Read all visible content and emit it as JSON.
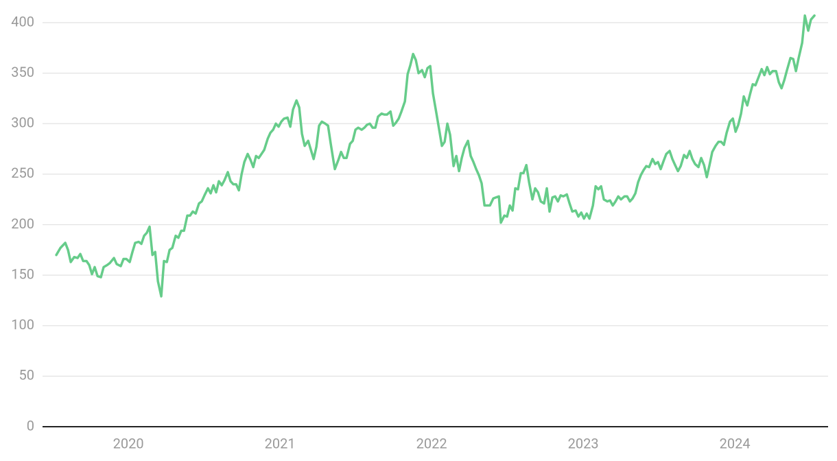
{
  "chart_data": {
    "type": "line",
    "color": "#66cc8a",
    "grid": true,
    "xlim": [
      2019.434,
      2024.615
    ],
    "xticks": [
      2020,
      2021,
      2022,
      2023,
      2024
    ],
    "ylim": [
      0,
      400
    ],
    "yticks": [
      0,
      50,
      100,
      150,
      200,
      250,
      300,
      350,
      400
    ],
    "x": [
      2019.525,
      2019.552,
      2019.584,
      2019.602,
      2019.62,
      2019.643,
      2019.665,
      2019.683,
      2019.702,
      2019.724,
      2019.742,
      2019.76,
      2019.778,
      2019.797,
      2019.819,
      2019.837,
      2019.86,
      2019.878,
      2019.905,
      2019.923,
      2019.95,
      2019.968,
      2019.987,
      2020.009,
      2020.027,
      2020.045,
      2020.068,
      2020.086,
      2020.104,
      2020.122,
      2020.14,
      2020.159,
      2020.177,
      2020.195,
      2020.217,
      2020.235,
      2020.254,
      2020.272,
      2020.29,
      2020.312,
      2020.33,
      2020.349,
      2020.367,
      2020.389,
      2020.407,
      2020.425,
      2020.444,
      2020.466,
      2020.484,
      2020.502,
      2020.525,
      2020.543,
      2020.561,
      2020.579,
      2020.597,
      2020.616,
      2020.634,
      2020.656,
      2020.674,
      2020.692,
      2020.711,
      2020.729,
      2020.747,
      2020.765,
      2020.787,
      2020.806,
      2020.824,
      2020.842,
      2020.86,
      2020.878,
      2020.896,
      2020.919,
      2020.937,
      2020.955,
      2020.973,
      2020.991,
      2021.009,
      2021.027,
      2021.05,
      2021.068,
      2021.086,
      2021.109,
      2021.127,
      2021.145,
      2021.163,
      2021.186,
      2021.204,
      2021.222,
      2021.24,
      2021.258,
      2021.276,
      2021.299,
      2021.317,
      2021.335,
      2021.353,
      2021.362,
      2021.385,
      2021.403,
      2021.421,
      2021.439,
      2021.462,
      2021.48,
      2021.498,
      2021.516,
      2021.539,
      2021.557,
      2021.575,
      2021.593,
      2021.611,
      2021.629,
      2021.647,
      2021.67,
      2021.688,
      2021.706,
      2021.729,
      2021.747,
      2021.765,
      2021.783,
      2021.801,
      2021.824,
      2021.842,
      2021.86,
      2021.878,
      2021.896,
      2021.914,
      2021.937,
      2021.955,
      2021.973,
      2021.991,
      2022.009,
      2022.032,
      2022.05,
      2022.068,
      2022.086,
      2022.104,
      2022.122,
      2022.145,
      2022.163,
      2022.181,
      2022.199,
      2022.217,
      2022.24,
      2022.258,
      2022.276,
      2022.294,
      2022.312,
      2022.33,
      2022.349,
      2022.367,
      2022.385,
      2022.407,
      2022.425,
      2022.444,
      2022.457,
      2022.48,
      2022.498,
      2022.516,
      2022.534,
      2022.552,
      2022.57,
      2022.588,
      2022.606,
      2022.625,
      2022.643,
      2022.665,
      2022.683,
      2022.702,
      2022.72,
      2022.742,
      2022.76,
      2022.778,
      2022.797,
      2022.815,
      2022.833,
      2022.851,
      2022.869,
      2022.892,
      2022.91,
      2022.928,
      2022.95,
      2022.968,
      2022.987,
      2023.005,
      2023.023,
      2023.041,
      2023.064,
      2023.082,
      2023.1,
      2023.118,
      2023.136,
      2023.159,
      2023.177,
      2023.195,
      2023.213,
      2023.231,
      2023.249,
      2023.272,
      2023.29,
      2023.308,
      2023.326,
      2023.344,
      2023.362,
      2023.38,
      2023.398,
      2023.416,
      2023.435,
      2023.457,
      2023.475,
      2023.493,
      2023.511,
      2023.53,
      2023.548,
      2023.57,
      2023.588,
      2023.606,
      2023.625,
      2023.643,
      2023.665,
      2023.683,
      2023.702,
      2023.72,
      2023.738,
      2023.76,
      2023.778,
      2023.797,
      2023.815,
      2023.833,
      2023.851,
      2023.873,
      2023.892,
      2023.91,
      2023.928,
      2023.946,
      2023.968,
      2023.987,
      2024.005,
      2024.023,
      2024.041,
      2024.059,
      2024.082,
      2024.1,
      2024.118,
      2024.136,
      2024.154,
      2024.177,
      2024.195,
      2024.213,
      2024.231,
      2024.249,
      2024.272,
      2024.29,
      2024.308,
      2024.326,
      2024.344,
      2024.367,
      2024.385,
      2024.403,
      2024.421,
      2024.444,
      2024.462,
      2024.484,
      2024.502,
      2024.525
    ],
    "values": [
      170,
      177,
      182,
      175,
      163,
      168,
      167,
      171,
      164,
      164,
      160,
      151,
      158,
      149,
      148,
      158,
      160,
      162,
      167,
      161,
      159,
      166,
      166,
      163,
      173,
      182,
      183,
      181,
      189,
      192,
      198,
      170,
      173,
      144,
      129,
      164,
      163,
      175,
      177,
      189,
      187,
      194,
      194,
      209,
      209,
      213,
      211,
      221,
      223,
      229,
      236,
      231,
      239,
      232,
      243,
      239,
      244,
      252,
      243,
      240,
      240,
      234,
      250,
      262,
      270,
      264,
      257,
      268,
      266,
      270,
      274,
      285,
      291,
      294,
      300,
      297,
      302,
      305,
      306,
      297,
      314,
      323,
      316,
      290,
      278,
      283,
      274,
      265,
      277,
      298,
      302,
      300,
      298,
      280,
      263,
      255,
      264,
      272,
      266,
      266,
      280,
      283,
      294,
      296,
      294,
      296,
      299,
      300,
      296,
      296,
      307,
      310,
      309,
      309,
      312,
      298,
      301,
      305,
      312,
      322,
      349,
      358,
      369,
      363,
      350,
      353,
      346,
      355,
      357,
      330,
      310,
      294,
      278,
      282,
      300,
      289,
      258,
      268,
      253,
      266,
      276,
      283,
      268,
      262,
      255,
      249,
      241,
      219,
      219,
      219,
      226,
      227,
      228,
      202,
      209,
      208,
      219,
      214,
      236,
      235,
      251,
      251,
      259,
      242,
      225,
      236,
      232,
      223,
      221,
      236,
      213,
      227,
      228,
      223,
      229,
      228,
      230,
      221,
      213,
      214,
      208,
      212,
      206,
      211,
      206,
      219,
      238,
      235,
      238,
      225,
      223,
      224,
      219,
      223,
      228,
      225,
      228,
      228,
      223,
      226,
      231,
      242,
      249,
      254,
      258,
      257,
      265,
      260,
      262,
      255,
      263,
      270,
      273,
      265,
      259,
      253,
      258,
      269,
      266,
      273,
      265,
      260,
      257,
      266,
      259,
      247,
      259,
      272,
      278,
      282,
      282,
      279,
      291,
      302,
      305,
      292,
      299,
      310,
      327,
      318,
      329,
      339,
      338,
      345,
      354,
      348,
      356,
      349,
      352,
      352,
      341,
      335,
      343,
      353,
      365,
      364,
      352,
      365,
      380,
      407,
      392,
      403,
      407
    ]
  }
}
